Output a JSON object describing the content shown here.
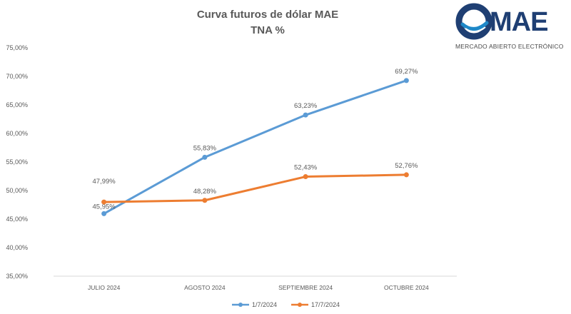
{
  "logo": {
    "brand": "MAE",
    "subtitle": "MERCADO ABIERTO ELECTRÓNICO",
    "colors": {
      "ring": "#1f3f73",
      "accent": "#1e88c8"
    }
  },
  "chart_data": {
    "type": "line",
    "title": "Curva futuros de dólar MAE",
    "subtitle": "TNA %",
    "xlabel": "",
    "ylabel": "",
    "categories": [
      "JULIO 2024",
      "AGOSTO 2024",
      "SEPTIEMBRE 2024",
      "OCTUBRE 2024"
    ],
    "ylim": [
      35,
      75
    ],
    "yticks": [
      35,
      40,
      45,
      50,
      55,
      60,
      65,
      70,
      75
    ],
    "ytick_labels": [
      "35,00%",
      "40,00%",
      "45,00%",
      "50,00%",
      "55,00%",
      "60,00%",
      "65,00%",
      "70,00%",
      "75,00%"
    ],
    "grid": false,
    "legend_position": "bottom",
    "series": [
      {
        "name": "1/7/2024",
        "color": "#5b9bd5",
        "values": [
          45.95,
          55.83,
          63.23,
          69.27
        ],
        "labels": [
          "45,95%",
          "55,83%",
          "63,23%",
          "69,27%"
        ]
      },
      {
        "name": "17/7/2024",
        "color": "#ed7d31",
        "values": [
          47.99,
          48.28,
          52.43,
          52.76
        ],
        "labels": [
          "47,99%",
          "48,28%",
          "52,43%",
          "52,76%"
        ]
      }
    ]
  }
}
